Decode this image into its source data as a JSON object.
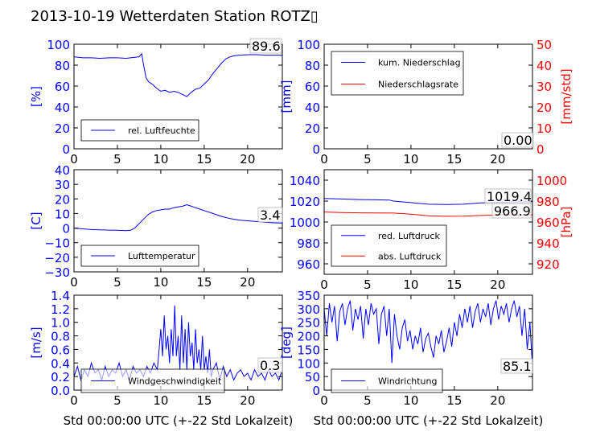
{
  "title": "2013-10-19 Wetterdaten Station ROTZ▯",
  "colors": {
    "left": "#0000ff",
    "right": "#ff0000",
    "black": "#000000"
  },
  "chart_data": [
    {
      "type": "line",
      "panel": "humidity",
      "xlim": [
        0,
        24
      ],
      "xticks": [
        0,
        5,
        10,
        15,
        20
      ],
      "ylim": [
        0,
        100
      ],
      "yticks": [
        0,
        20,
        40,
        60,
        80,
        100
      ],
      "ylabel": "[%]",
      "legend": "lower-left",
      "value_box": "89.6",
      "series": [
        {
          "name": "rel. Luftfeuchte",
          "color": "#0000ff",
          "x": [
            0,
            1,
            2,
            3,
            4,
            5,
            6,
            7,
            7.5,
            7.8,
            8,
            8.3,
            8.6,
            9,
            9.5,
            10,
            10.5,
            11,
            11.5,
            12,
            12.5,
            13,
            13.5,
            14,
            14.5,
            15,
            15.5,
            16,
            16.5,
            17,
            17.5,
            18,
            18.5,
            19,
            20,
            21,
            22,
            23,
            24
          ],
          "y": [
            88,
            87,
            87,
            86.5,
            87,
            87,
            86.5,
            87.5,
            88,
            91,
            81,
            68,
            64,
            62,
            58,
            55,
            56,
            54,
            55,
            54,
            52,
            50,
            54,
            57,
            58,
            62,
            66,
            72,
            77,
            82,
            86,
            88,
            89,
            89.5,
            90,
            90,
            89.6,
            89.6,
            89.6
          ]
        }
      ]
    },
    {
      "type": "line",
      "panel": "precipitation",
      "xlim": [
        0,
        24
      ],
      "xticks": [
        0,
        5,
        10,
        15,
        20
      ],
      "ylim": [
        0,
        100
      ],
      "yticks": [
        0,
        20,
        40,
        60,
        80,
        100
      ],
      "ylabel": "[mm]",
      "y2lim": [
        0,
        50
      ],
      "y2ticks": [
        0,
        10,
        20,
        30,
        40,
        50
      ],
      "y2label": "[mm/std]",
      "legend": "upper-left",
      "value_box": "0.00",
      "series": [
        {
          "name": "kum. Niederschlag",
          "color": "#0000ff",
          "axis": "left",
          "x": [
            0,
            24
          ],
          "y": [
            0,
            0
          ]
        },
        {
          "name": "Niederschlagsrate",
          "color": "#ff0000",
          "axis": "right",
          "x": [
            0,
            24
          ],
          "y": [
            0,
            0
          ]
        }
      ]
    },
    {
      "type": "line",
      "panel": "temperature",
      "xlim": [
        0,
        24
      ],
      "xticks": [
        0,
        5,
        10,
        15,
        20
      ],
      "ylim": [
        -30,
        40
      ],
      "yticks": [
        -30,
        -20,
        -10,
        0,
        10,
        20,
        30,
        40
      ],
      "ylabel": "[C]",
      "legend": "lower-left",
      "value_box": "3.4",
      "series": [
        {
          "name": "Lufttemperatur",
          "color": "#0000ff",
          "x": [
            0,
            1,
            2,
            3,
            4,
            5,
            6,
            6.5,
            7,
            7.5,
            8,
            8.5,
            9,
            9.5,
            10,
            10.5,
            11,
            11.5,
            12,
            12.5,
            13,
            13.5,
            14,
            14.5,
            15,
            16,
            17,
            18,
            19,
            20,
            21,
            22,
            23,
            24
          ],
          "y": [
            0,
            -0.5,
            -1,
            -1.2,
            -1.4,
            -1.5,
            -1.8,
            -1.5,
            0,
            3,
            6,
            9,
            11,
            12,
            12.5,
            13,
            13,
            14,
            14.5,
            15,
            16,
            15,
            14,
            13,
            12,
            10,
            8,
            6.5,
            5.5,
            5,
            4.5,
            4,
            3.6,
            3.4
          ]
        }
      ]
    },
    {
      "type": "line",
      "panel": "pressure",
      "xlim": [
        0,
        24
      ],
      "xticks": [
        0,
        5,
        10,
        15,
        20
      ],
      "ylim": [
        950,
        1050
      ],
      "yticks": [
        960,
        980,
        1000,
        1020,
        1040
      ],
      "ylabel": "",
      "y2lim": [
        910,
        1010
      ],
      "y2ticks": [
        920,
        940,
        960,
        980,
        1000
      ],
      "y2label": "[hPa]",
      "legend": "lower-left",
      "value_box_1": "1019.4",
      "value_box_2": "966.9",
      "series": [
        {
          "name": "red. Luftdruck",
          "color": "#0000ff",
          "axis": "left",
          "x": [
            0,
            2,
            4,
            6,
            7.5,
            8,
            10,
            12,
            14,
            16,
            18,
            20,
            22,
            24
          ],
          "y": [
            1022.5,
            1022,
            1021.5,
            1021.2,
            1021,
            1020,
            1018.5,
            1017,
            1016.8,
            1017,
            1018.2,
            1018.8,
            1019.2,
            1019.4
          ]
        },
        {
          "name": "abs. Luftdruck",
          "color": "#ff0000",
          "axis": "right",
          "x": [
            0,
            2,
            4,
            6,
            8,
            10,
            12,
            14,
            16,
            18,
            20,
            22,
            24
          ],
          "y": [
            969.5,
            969,
            968.8,
            968.6,
            968.5,
            967.5,
            966,
            965.5,
            965.6,
            966.2,
            966.6,
            966.8,
            966.9
          ]
        }
      ]
    },
    {
      "type": "line",
      "panel": "wind_speed",
      "xlim": [
        0,
        24
      ],
      "xticks": [
        0,
        5,
        10,
        15,
        20
      ],
      "ylim": [
        0,
        1.4
      ],
      "yticks": [
        0.0,
        0.2,
        0.4,
        0.6,
        0.8,
        1.0,
        1.2,
        1.4
      ],
      "ylabel": "[m/s]",
      "xlabel": "Std 00:00:00 UTC (+-22 Std Lokalzeit)",
      "legend": "lower-left",
      "value_box": "0.3",
      "series": [
        {
          "name": "Windgeschwindigkeit",
          "color": "#0000ff",
          "x": [
            0,
            0.4,
            0.8,
            1.2,
            1.6,
            2,
            2.4,
            2.8,
            3.2,
            3.6,
            4,
            4.4,
            4.8,
            5.2,
            5.6,
            6,
            6.4,
            6.8,
            7.2,
            7.6,
            8,
            8.4,
            8.8,
            9.2,
            9.6,
            9.8,
            10,
            10.2,
            10.4,
            10.6,
            10.8,
            11,
            11.2,
            11.4,
            11.6,
            11.8,
            12,
            12.2,
            12.4,
            12.6,
            12.8,
            13,
            13.2,
            13.4,
            13.6,
            13.8,
            14,
            14.2,
            14.4,
            14.6,
            14.8,
            15,
            15.2,
            15.4,
            15.6,
            15.8,
            16,
            16.4,
            16.8,
            17.2,
            17.6,
            18,
            18.4,
            18.8,
            19.2,
            19.6,
            20,
            20.4,
            20.8,
            21.2,
            21.6,
            22,
            22.4,
            22.8,
            23.2,
            23.6,
            24
          ],
          "y": [
            0.2,
            0.35,
            0.15,
            0.3,
            0.2,
            0.4,
            0.25,
            0.3,
            0.15,
            0.35,
            0.2,
            0.3,
            0.25,
            0.4,
            0.2,
            0.3,
            0.15,
            0.35,
            0.25,
            0.3,
            0.2,
            0.35,
            0.25,
            0.4,
            0.3,
            0.6,
            0.9,
            0.5,
            1.1,
            0.6,
            0.8,
            0.4,
            0.9,
            0.5,
            1.25,
            0.5,
            0.8,
            0.3,
            1.1,
            0.4,
            0.9,
            0.3,
            1.0,
            0.5,
            0.7,
            0.3,
            0.9,
            0.4,
            0.6,
            0.3,
            0.8,
            0.3,
            0.5,
            0.25,
            0.6,
            0.2,
            0.3,
            0.4,
            0.15,
            0.35,
            0.2,
            0.3,
            0.15,
            0.25,
            0.3,
            0.2,
            0.25,
            0.15,
            0.3,
            0.2,
            0.25,
            0.15,
            0.3,
            0.2,
            0.25,
            0.15,
            0.3
          ]
        }
      ]
    },
    {
      "type": "line",
      "panel": "wind_direction",
      "xlim": [
        0,
        24
      ],
      "xticks": [
        0,
        5,
        10,
        15,
        20
      ],
      "ylim": [
        0,
        350
      ],
      "yticks": [
        0,
        50,
        100,
        150,
        200,
        250,
        300,
        350
      ],
      "ylabel": "[deg]",
      "xlabel": "Std 00:00:00 UTC (+-22 Std Lokalzeit)",
      "legend": "lower-left",
      "value_box": "85.1",
      "series": [
        {
          "name": "Windrichtung",
          "color": "#0000ff",
          "x": [
            0,
            0.3,
            0.6,
            0.9,
            1.2,
            1.5,
            1.8,
            2.1,
            2.4,
            2.7,
            3,
            3.3,
            3.6,
            3.9,
            4.2,
            4.5,
            4.8,
            5.1,
            5.4,
            5.7,
            6,
            6.3,
            6.6,
            6.9,
            7.2,
            7.5,
            7.8,
            8.1,
            8.4,
            8.7,
            9,
            9.3,
            9.6,
            9.9,
            10.2,
            10.5,
            10.8,
            11.1,
            11.4,
            11.7,
            12,
            12.3,
            12.6,
            12.9,
            13.2,
            13.5,
            13.8,
            14.1,
            14.4,
            14.7,
            15,
            15.3,
            15.6,
            15.9,
            16.2,
            16.5,
            16.8,
            17.1,
            17.4,
            17.7,
            18,
            18.3,
            18.6,
            18.9,
            19.2,
            19.5,
            19.8,
            20.1,
            20.4,
            20.7,
            21,
            21.3,
            21.6,
            21.9,
            22.2,
            22.5,
            22.8,
            23.1,
            23.4,
            23.7,
            24
          ],
          "y": [
            300,
            200,
            320,
            250,
            310,
            180,
            290,
            320,
            240,
            300,
            330,
            220,
            300,
            260,
            310,
            190,
            300,
            240,
            320,
            280,
            300,
            170,
            280,
            310,
            200,
            300,
            100,
            280,
            200,
            150,
            230,
            260,
            180,
            220,
            150,
            200,
            170,
            230,
            140,
            190,
            210,
            160,
            120,
            200,
            170,
            220,
            140,
            180,
            230,
            160,
            250,
            200,
            280,
            230,
            300,
            250,
            310,
            230,
            290,
            320,
            250,
            300,
            270,
            320,
            240,
            300,
            330,
            260,
            310,
            280,
            320,
            250,
            300,
            330,
            270,
            310,
            200,
            300,
            150,
            250,
            85
          ]
        }
      ]
    }
  ]
}
